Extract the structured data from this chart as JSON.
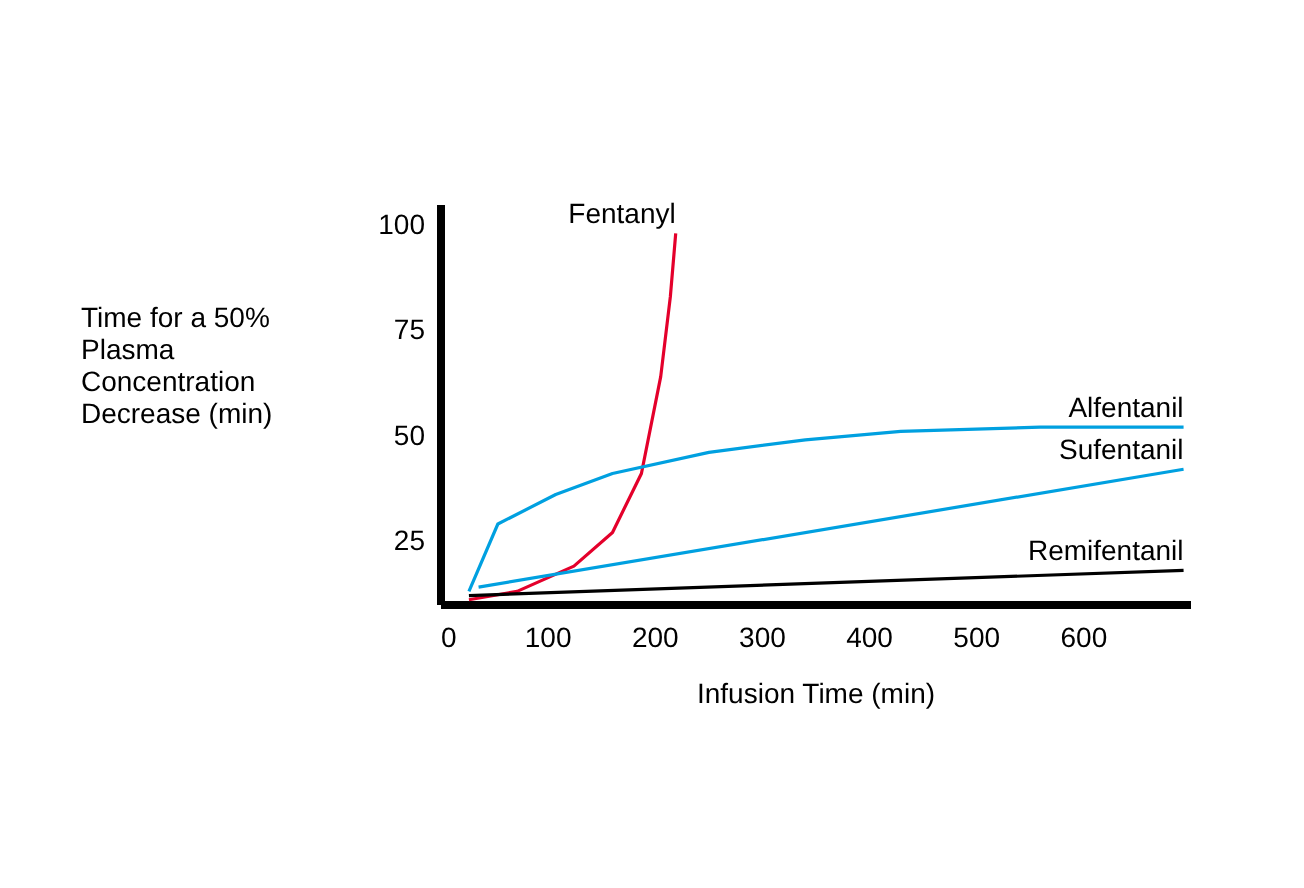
{
  "chart_data": {
    "type": "line",
    "xlabel": "Infusion Time (min)",
    "ylabel": "Time for a 50%\nPlasma\nConcentration\nDecrease (min)",
    "xlim": [
      0,
      700
    ],
    "xticks": [
      0,
      100,
      200,
      300,
      400,
      500,
      600
    ],
    "ylim": [
      10,
      105
    ],
    "yticks": [
      25,
      50,
      75,
      100
    ],
    "grid": false,
    "legend": false,
    "marker": "none",
    "line_style": "solid",
    "series": [
      {
        "name": "Fentanyl",
        "color": "#e4002b",
        "x": [
          27,
          72,
          125,
          161,
          188,
          206,
          215,
          220
        ],
        "values": [
          11,
          13,
          19,
          27,
          41,
          64,
          83,
          98
        ]
      },
      {
        "name": "Alfentanil",
        "color": "#00a0e0",
        "x": [
          27,
          54,
          108,
          161,
          251,
          341,
          430,
          560,
          694
        ],
        "values": [
          13,
          29,
          36,
          41,
          46,
          49,
          51,
          52,
          52
        ]
      },
      {
        "name": "Sufentanil",
        "color": "#00a0e0",
        "x": [
          36,
          694
        ],
        "values": [
          14,
          42
        ]
      },
      {
        "name": "Remifentanil",
        "color": "#000000",
        "x": [
          27,
          694
        ],
        "values": [
          12,
          18
        ]
      }
    ]
  }
}
